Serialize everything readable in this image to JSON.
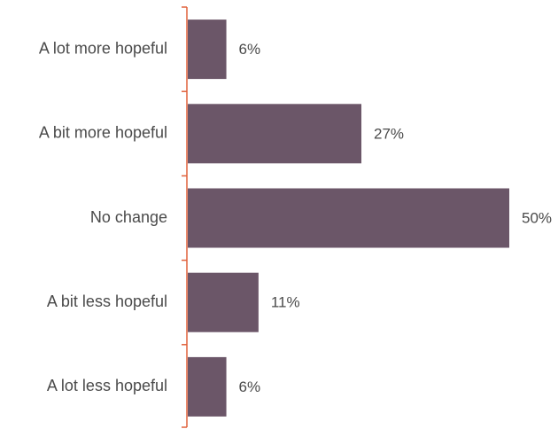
{
  "chart_data": {
    "type": "bar",
    "orientation": "horizontal",
    "categories": [
      "A lot more hopeful",
      "A bit more hopeful",
      "No change",
      "A bit less hopeful",
      "A lot less hopeful"
    ],
    "values": [
      6,
      27,
      50,
      11,
      6
    ],
    "value_labels": [
      "6%",
      "27%",
      "50%",
      "11%",
      "6%"
    ],
    "xlim": [
      0,
      50
    ],
    "grid": false,
    "legend": "none",
    "colors": {
      "bar": "#6b5668",
      "axis": "#e0603a",
      "text": "#4a4a4a"
    }
  }
}
